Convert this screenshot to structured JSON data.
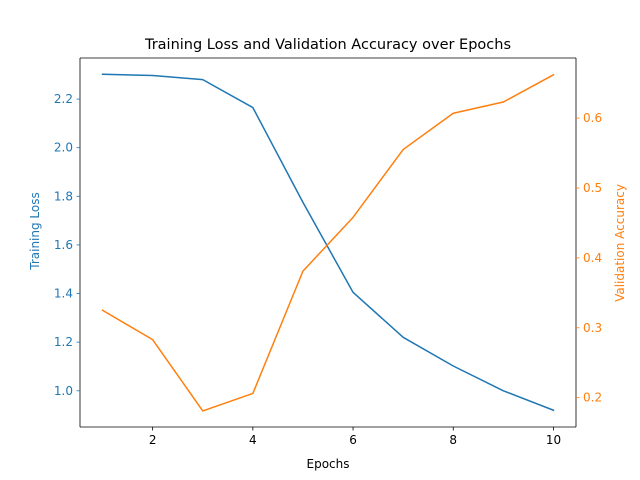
{
  "chart_data": {
    "type": "line",
    "title": "Training Loss and Validation Accuracy over Epochs",
    "xlabel": "Epochs",
    "ylabel_left": "Training Loss",
    "ylabel_right": "Validation Accuracy",
    "x": [
      1,
      2,
      3,
      4,
      5,
      6,
      7,
      8,
      9,
      10
    ],
    "xlim": [
      0.55,
      10.45
    ],
    "xticks": [
      2,
      4,
      6,
      8,
      10
    ],
    "ylim_left": [
      0.851,
      2.369
    ],
    "ylim_right": [
      0.158,
      0.686
    ],
    "yticks_left": [
      "1.0",
      "1.2",
      "1.4",
      "1.6",
      "1.8",
      "2.0",
      "2.2"
    ],
    "yticks_right": [
      "0.2",
      "0.3",
      "0.4",
      "0.5",
      "0.6"
    ],
    "grid": false,
    "series": [
      {
        "axis": "left",
        "color": "#1f77b4",
        "values": [
          2.302,
          2.297,
          2.28,
          2.165,
          1.775,
          1.405,
          1.22,
          1.102,
          1.0,
          0.92
        ]
      },
      {
        "axis": "right",
        "color": "#ff7f0e",
        "values": [
          0.325,
          0.283,
          0.181,
          0.206,
          0.381,
          0.458,
          0.555,
          0.607,
          0.623,
          0.662
        ]
      }
    ]
  }
}
